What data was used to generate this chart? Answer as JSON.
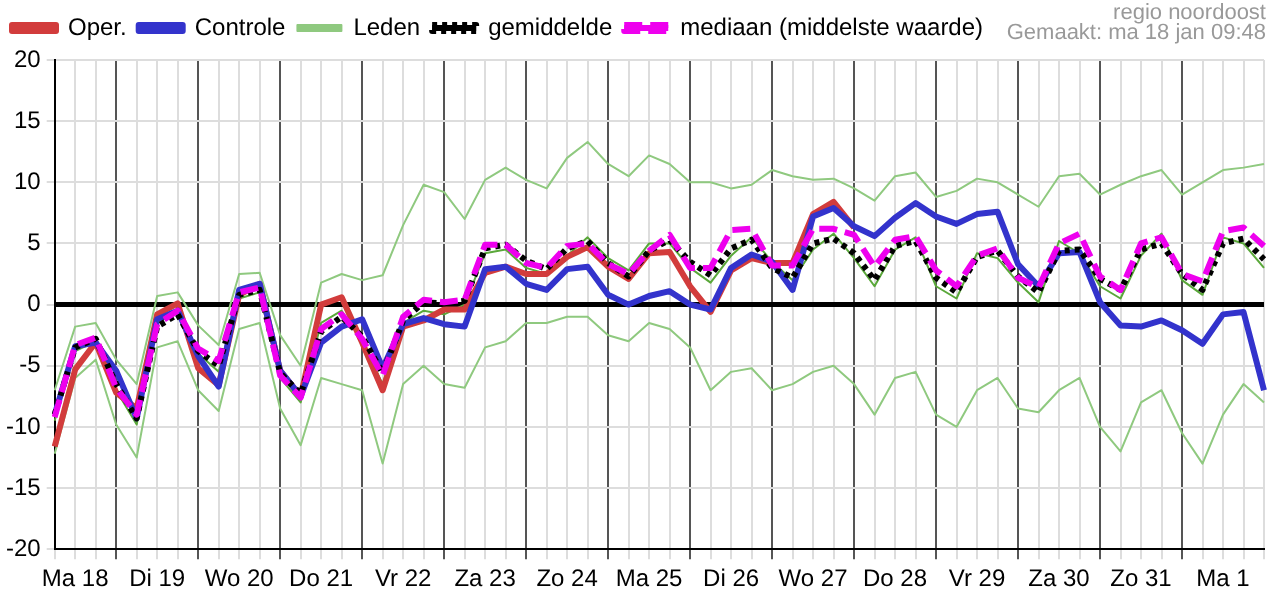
{
  "chart_data": {
    "type": "line",
    "annotations": [
      "regio noordoost",
      "Gemaakt: ma 18 jan 09:48"
    ],
    "categories": [
      null,
      "Ma 18",
      null,
      null,
      null,
      "Di 19",
      null,
      null,
      null,
      "Wo 20",
      null,
      null,
      null,
      "Do 21",
      null,
      null,
      null,
      "Vr 22",
      null,
      null,
      null,
      "Za 23",
      null,
      null,
      null,
      "Zo 24",
      null,
      null,
      null,
      "Ma 25",
      null,
      null,
      null,
      "Di 26",
      null,
      null,
      null,
      "Wo 27",
      null,
      null,
      null,
      "Do 28",
      null,
      null,
      null,
      "Vr 29",
      null,
      null,
      null,
      "Za 30",
      null,
      null,
      null,
      "Zo 31",
      null,
      null,
      null,
      "Ma 1",
      null,
      null
    ],
    "ylim": [
      -20,
      20
    ],
    "yticks": [
      -20,
      -15,
      -10,
      -5,
      0,
      5,
      10,
      15,
      20
    ],
    "grid": true,
    "legend": "top",
    "marker": "none",
    "ref_lines": [
      {
        "axis": "y",
        "value": 0,
        "color": "#000000"
      }
    ],
    "series": [
      {
        "name": "Oper.",
        "color": "#d23c3c",
        "values": [
          -11.6,
          -5.3,
          -3.1,
          -7.2,
          -8.5,
          -0.8,
          0.1,
          -5.2,
          -6.6,
          0.8,
          1.7,
          -5.4,
          -7.5,
          0,
          0.6,
          -3.1,
          -7.0,
          -1.8,
          -1.3,
          -0.4,
          -0.4,
          2.6,
          3.1,
          2.5,
          2.5,
          3.9,
          4.7,
          3.1,
          2.1,
          4.2,
          4.3,
          1.5,
          -0.6,
          2.8,
          3.8,
          3.4,
          3.4,
          7.4,
          8.4,
          6.3,
          null,
          null,
          null,
          null,
          null,
          null,
          null,
          null,
          null,
          null,
          null,
          null,
          null,
          null,
          null,
          null,
          null,
          null,
          null,
          null
        ]
      },
      {
        "name": "Controle",
        "color": "#3333cc",
        "values": [
          -9.0,
          -3.4,
          -3.1,
          -5.4,
          -9.3,
          -1.2,
          -0.5,
          -4.2,
          -6.7,
          1.2,
          1.7,
          -5.4,
          -7.5,
          -3.1,
          -1.8,
          -1.2,
          -5.2,
          -1.6,
          -1.1,
          -1.6,
          -1.8,
          2.9,
          3.1,
          1.7,
          1.2,
          2.9,
          3.1,
          0.8,
          0,
          0.7,
          1.1,
          0,
          -0.4,
          3.0,
          4.1,
          3.5,
          1.2,
          7.2,
          7.9,
          6.4,
          5.6,
          7.1,
          8.3,
          7.2,
          6.6,
          7.4,
          7.6,
          3.3,
          1.5,
          4.2,
          4.3,
          0.2,
          -1.7,
          -1.8,
          -1.3,
          -2.1,
          -3.2,
          -0.8,
          -0.6,
          -7.0
        ]
      },
      {
        "name": "Leden",
        "color": "#8fc97f",
        "values": [
          -7.0,
          -1.8,
          -1.5,
          -4.5,
          -6.5,
          0.7,
          1.0,
          -1.7,
          -3.3,
          2.5,
          2.6,
          -2.5,
          -5.0,
          1.8,
          2.5,
          2.0,
          2.4,
          6.5,
          9.8,
          9.2,
          7.0,
          10.2,
          11.2,
          10.2,
          9.5,
          12.0,
          13.3,
          11.5,
          10.5,
          12.2,
          11.5,
          10.0,
          10.0,
          9.5,
          9.8,
          11.0,
          10.5,
          10.2,
          10.3,
          9.5,
          8.5,
          10.5,
          10.8,
          8.8,
          9.3,
          10.3,
          10.0,
          9.0,
          8.0,
          10.5,
          10.7,
          9.0,
          9.8,
          10.5,
          11.0,
          9.0,
          10.0,
          11.0,
          11.2,
          11.5
        ]
      },
      {
        "name": "gemiddelde",
        "color": "#000000",
        "line_style": "dotted",
        "values": [
          -9.0,
          -3.5,
          -2.8,
          -6.5,
          -9.3,
          -1.8,
          -0.8,
          -3.8,
          -5.0,
          0.8,
          1.2,
          -5.6,
          -7.3,
          -2.2,
          -1.0,
          -2.6,
          -5.6,
          -1.3,
          0.2,
          0.1,
          0.3,
          4.6,
          4.9,
          3.6,
          2.9,
          4.6,
          5.2,
          3.4,
          2.3,
          4.4,
          5.3,
          3.5,
          2.4,
          4.6,
          5.3,
          3.0,
          2.2,
          5.0,
          5.4,
          4.2,
          2.0,
          4.8,
          5.2,
          2.2,
          1.0,
          3.9,
          4.4,
          2.3,
          1.0,
          4.4,
          4.5,
          2.1,
          1.2,
          4.5,
          5.0,
          2.5,
          1.2,
          5.0,
          5.4,
          3.7
        ]
      },
      {
        "name": "mediaan (middelste waarde)",
        "color": "#ee00ee",
        "line_style": "dashed",
        "values": [
          -9.2,
          -3.3,
          -2.7,
          -6.8,
          -9.0,
          -1.6,
          -0.5,
          -3.6,
          -4.6,
          1.0,
          1.4,
          -5.8,
          -7.6,
          -2.0,
          -0.8,
          -2.8,
          -5.8,
          -1.0,
          0.4,
          0.2,
          0.4,
          4.9,
          4.9,
          3.4,
          3.0,
          4.8,
          5.0,
          3.3,
          2.5,
          4.4,
          5.7,
          3.0,
          3.0,
          6.1,
          6.2,
          3.2,
          3.2,
          6.2,
          6.2,
          5.7,
          3.1,
          5.3,
          5.6,
          2.8,
          1.5,
          4.0,
          4.6,
          2.2,
          1.4,
          5.0,
          5.8,
          2.3,
          1.2,
          5.0,
          5.5,
          2.5,
          1.9,
          6.0,
          6.3,
          4.8
        ]
      },
      {
        "color": "#8fc97f",
        "values": [
          -12.2,
          -6.0,
          -4.5,
          -9.8,
          -12.5,
          -3.5,
          -3.0,
          -7.0,
          -8.7,
          -2.0,
          -1.5,
          -8.5,
          -11.5,
          -6.0,
          -6.5,
          -7.0,
          -13.0,
          -6.5,
          -5.0,
          -6.5,
          -6.8,
          -3.5,
          -3.0,
          -1.5,
          -1.5,
          -1.0,
          -1.0,
          -2.5,
          -3.0,
          -1.5,
          -2.0,
          -3.5,
          -7.0,
          -5.5,
          -5.2,
          -7.0,
          -6.5,
          -5.5,
          -5.0,
          -6.5,
          -9.0,
          -6.0,
          -5.5,
          -9.0,
          -10.0,
          -7.0,
          -6.0,
          -8.5,
          -8.8,
          -7.0,
          -6.0,
          -10.0,
          -12.0,
          -8.0,
          -7.0,
          -10.5,
          -13.0,
          -9.0,
          -6.5,
          -8.0
        ]
      },
      {
        "color": "#5aa83a",
        "values": [
          -9.5,
          -3.8,
          -3.0,
          -7.0,
          -9.8,
          -1.5,
          -0.6,
          -4.0,
          -5.5,
          0.5,
          1.0,
          -6.0,
          -8.0,
          -1.5,
          -0.5,
          -3.0,
          -6.5,
          -1.5,
          -0.5,
          -0.8,
          0.0,
          4.2,
          4.5,
          3.0,
          2.5,
          4.0,
          5.5,
          3.8,
          2.8,
          5.0,
          5.0,
          3.0,
          1.8,
          4.0,
          5.5,
          3.5,
          2.0,
          4.5,
          5.8,
          3.8,
          1.5,
          4.5,
          5.5,
          1.5,
          0.5,
          4.2,
          3.8,
          1.8,
          0.2,
          5.2,
          4.2,
          1.5,
          0.5,
          4.0,
          5.8,
          2.0,
          0.8,
          5.5,
          5.0,
          3.0
        ]
      }
    ]
  }
}
